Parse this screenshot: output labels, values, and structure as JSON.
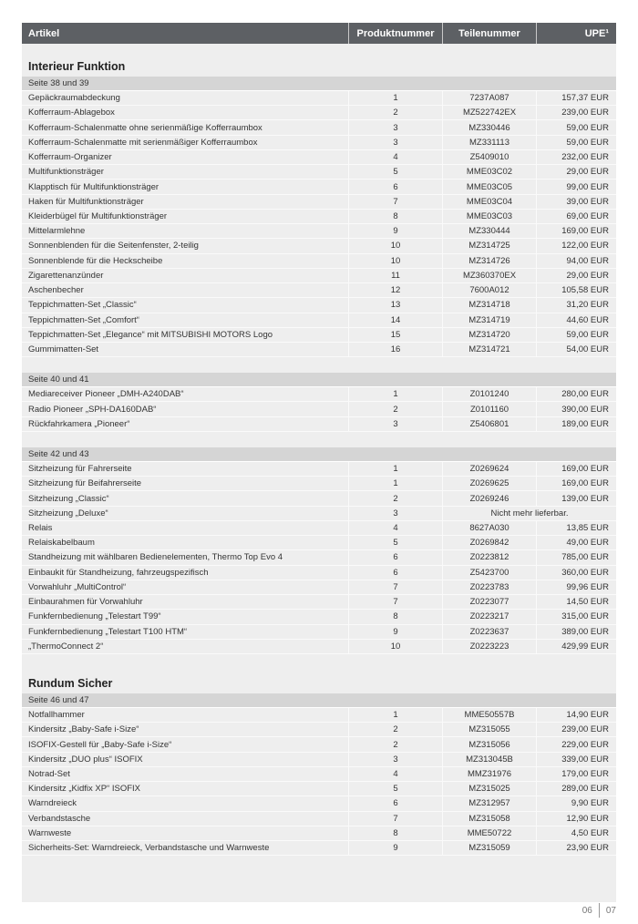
{
  "header": {
    "artikel": "Artikel",
    "produktnummer": "Produktnummer",
    "teilenummer": "Teilenummer",
    "upe": "UPE¹"
  },
  "sections": [
    {
      "title": "Interieur Funktion",
      "groups": [
        {
          "label": "Seite 38 und 39",
          "rows": [
            [
              "Gepäckraumabdeckung",
              "1",
              "7237A087",
              "157,37 EUR"
            ],
            [
              "Kofferraum-Ablagebox",
              "2",
              "MZ522742EX",
              "239,00 EUR"
            ],
            [
              "Kofferraum-Schalenmatte ohne serienmäßige Kofferraumbox",
              "3",
              "MZ330446",
              "59,00 EUR"
            ],
            [
              "Kofferraum-Schalenmatte mit serienmäßiger Kofferraumbox",
              "3",
              "MZ331113",
              "59,00 EUR"
            ],
            [
              "Kofferraum-Organizer",
              "4",
              "Z5409010",
              "232,00 EUR"
            ],
            [
              "Multifunktionsträger",
              "5",
              "MME03C02",
              "29,00 EUR"
            ],
            [
              "Klapptisch für Multifunktionsträger",
              "6",
              "MME03C05",
              "99,00 EUR"
            ],
            [
              "Haken für Multifunktionsträger",
              "7",
              "MME03C04",
              "39,00 EUR"
            ],
            [
              "Kleiderbügel für Multifunktionsträger",
              "8",
              "MME03C03",
              "69,00 EUR"
            ],
            [
              "Mittelarmlehne",
              "9",
              "MZ330444",
              "169,00 EUR"
            ],
            [
              "Sonnenblenden für die Seitenfenster, 2-teilig",
              "10",
              "MZ314725",
              "122,00 EUR"
            ],
            [
              "Sonnenblende für die Heckscheibe",
              "10",
              "MZ314726",
              "94,00 EUR"
            ],
            [
              "Zigarettenanzünder",
              "11",
              "MZ360370EX",
              "29,00 EUR"
            ],
            [
              "Aschenbecher",
              "12",
              "7600A012",
              "105,58 EUR"
            ],
            [
              "Teppichmatten-Set „Classic“",
              "13",
              "MZ314718",
              "31,20 EUR"
            ],
            [
              "Teppichmatten-Set „Comfort“",
              "14",
              "MZ314719",
              "44,60 EUR"
            ],
            [
              "Teppichmatten-Set „Elegance“ mit MITSUBISHI MOTORS Logo",
              "15",
              "MZ314720",
              "59,00 EUR"
            ],
            [
              "Gummimatten-Set",
              "16",
              "MZ314721",
              "54,00 EUR"
            ]
          ]
        },
        {
          "label": "Seite 40 und 41",
          "rows": [
            [
              "Mediareceiver Pioneer „DMH-A240DAB“",
              "1",
              "Z0101240",
              "280,00 EUR"
            ],
            [
              "Radio Pioneer „SPH-DA160DAB“",
              "2",
              "Z0101160",
              "390,00 EUR"
            ],
            [
              "Rückfahrkamera „Pioneer“",
              "3",
              "Z5406801",
              "189,00 EUR"
            ]
          ]
        },
        {
          "label": "Seite 42 und 43",
          "rows": [
            [
              "Sitzheizung für Fahrerseite",
              "1",
              "Z0269624",
              "169,00 EUR"
            ],
            [
              "Sitzheizung für Beifahrerseite",
              "1",
              "Z0269625",
              "169,00 EUR"
            ],
            [
              "Sitzheizung „Classic“",
              "2",
              "Z0269246",
              "139,00 EUR"
            ],
            [
              "Sitzheizung „Deluxe“",
              "3",
              "Nicht mehr lieferbar.",
              ""
            ],
            [
              "Relais",
              "4",
              "8627A030",
              "13,85 EUR"
            ],
            [
              "Relaiskabelbaum",
              "5",
              "Z0269842",
              "49,00 EUR"
            ],
            [
              "Standheizung mit wählbaren Bedienelementen, Thermo Top Evo 4",
              "6",
              "Z0223812",
              "785,00 EUR"
            ],
            [
              "Einbaukit für Standheizung, fahrzeugspezifisch",
              "6",
              "Z5423700",
              "360,00 EUR"
            ],
            [
              "Vorwahluhr „MultiControl“",
              "7",
              "Z0223783",
              "99,96 EUR"
            ],
            [
              "Einbaurahmen für Vorwahluhr",
              "7",
              "Z0223077",
              "14,50 EUR"
            ],
            [
              "Funkfernbedienung „Telestart T99“",
              "8",
              "Z0223217",
              "315,00 EUR"
            ],
            [
              "Funkfernbedienung „Telestart T100 HTM“",
              "9",
              "Z0223637",
              "389,00 EUR"
            ],
            [
              "„ThermoConnect 2“",
              "10",
              "Z0223223",
              "429,99 EUR"
            ]
          ]
        }
      ]
    },
    {
      "title": "Rundum Sicher",
      "groups": [
        {
          "label": "Seite 46 und 47",
          "rows": [
            [
              "Notfallhammer",
              "1",
              "MME50557B",
              "14,90 EUR"
            ],
            [
              "Kindersitz „Baby-Safe i-Size“",
              "2",
              "MZ315055",
              "239,00 EUR"
            ],
            [
              "ISOFIX-Gestell für „Baby-Safe i-Size“",
              "2",
              "MZ315056",
              "229,00 EUR"
            ],
            [
              "Kindersitz „DUO plus“ ISOFIX",
              "3",
              "MZ313045B",
              "339,00 EUR"
            ],
            [
              "Notrad-Set",
              "4",
              "MMZ31976",
              "179,00 EUR"
            ],
            [
              "Kindersitz „Kidfix XP“ ISOFIX",
              "5",
              "MZ315025",
              "289,00 EUR"
            ],
            [
              "Warndreieck",
              "6",
              "MZ312957",
              "9,90 EUR"
            ],
            [
              "Verbandstasche",
              "7",
              "MZ315058",
              "12,90 EUR"
            ],
            [
              "Warnweste",
              "8",
              "MME50722",
              "4,50 EUR"
            ],
            [
              "Sicherheits-Set: Warndreieck, Verbandstasche und Warnweste",
              "9",
              "MZ315059",
              "23,90 EUR"
            ]
          ]
        }
      ]
    }
  ],
  "footer": {
    "page_left": "06",
    "page_right": "07"
  }
}
